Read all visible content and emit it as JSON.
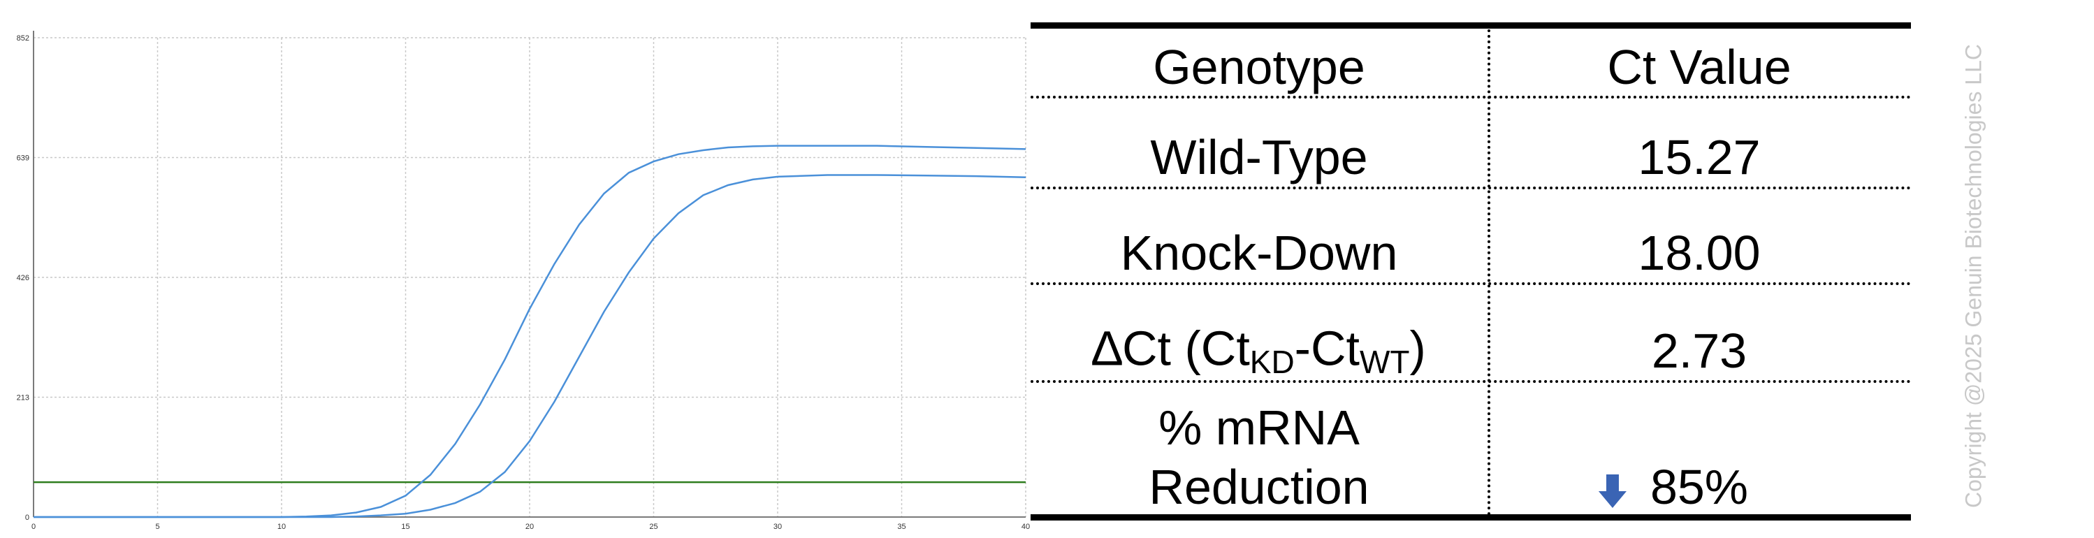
{
  "chart_data": {
    "type": "line",
    "title": "",
    "xlabel": "",
    "ylabel": "",
    "xlim": [
      0,
      40
    ],
    "ylim": [
      0,
      852
    ],
    "xticks": [
      0,
      5,
      10,
      15,
      20,
      25,
      30,
      35,
      40
    ],
    "yticks": [
      0,
      213,
      426,
      639,
      852
    ],
    "grid": true,
    "threshold": {
      "y": 62,
      "color": "#2e7d1e"
    },
    "series_color": "#4a90d9",
    "series": [
      {
        "x": [
          0,
          5,
          10,
          11,
          12,
          13,
          14,
          15,
          16,
          17,
          18,
          19,
          20,
          21,
          22,
          23,
          24,
          25,
          26,
          27,
          28,
          29,
          30,
          32,
          34,
          36,
          38,
          40
        ],
        "y": [
          0,
          0,
          0,
          1,
          3,
          8,
          18,
          38,
          75,
          130,
          200,
          280,
          370,
          450,
          520,
          575,
          612,
          632,
          645,
          652,
          657,
          659,
          660,
          660,
          660,
          658,
          656,
          654
        ]
      },
      {
        "x": [
          0,
          5,
          10,
          12,
          13,
          14,
          15,
          16,
          17,
          18,
          19,
          20,
          21,
          22,
          23,
          24,
          25,
          26,
          27,
          28,
          29,
          30,
          32,
          34,
          36,
          38,
          40
        ],
        "y": [
          0,
          0,
          0,
          0,
          1,
          3,
          6,
          13,
          25,
          45,
          80,
          135,
          205,
          285,
          365,
          435,
          495,
          540,
          572,
          590,
          600,
          605,
          608,
          608,
          607,
          606,
          604
        ]
      }
    ]
  },
  "table": {
    "header": {
      "genotype": "Genotype",
      "ct_value": "Ct Value"
    },
    "rows": {
      "wild_type": {
        "label": "Wild-Type",
        "value": "15.27"
      },
      "knock_down": {
        "label": "Knock-Down",
        "value": "18.00"
      },
      "delta": {
        "label_pre": "∆Ct (Ct",
        "sub_kd": "KD",
        "dash": "-Ct",
        "sub_wt": "WT",
        "close": ")",
        "value": "2.73"
      },
      "reduction": {
        "label_line1": "% mRNA",
        "label_line2": "Reduction",
        "value": "85%"
      }
    },
    "arrow_color": "#3a64b4"
  },
  "copyright": "Copyright @2025 Genuin Biotechnologies LLC"
}
